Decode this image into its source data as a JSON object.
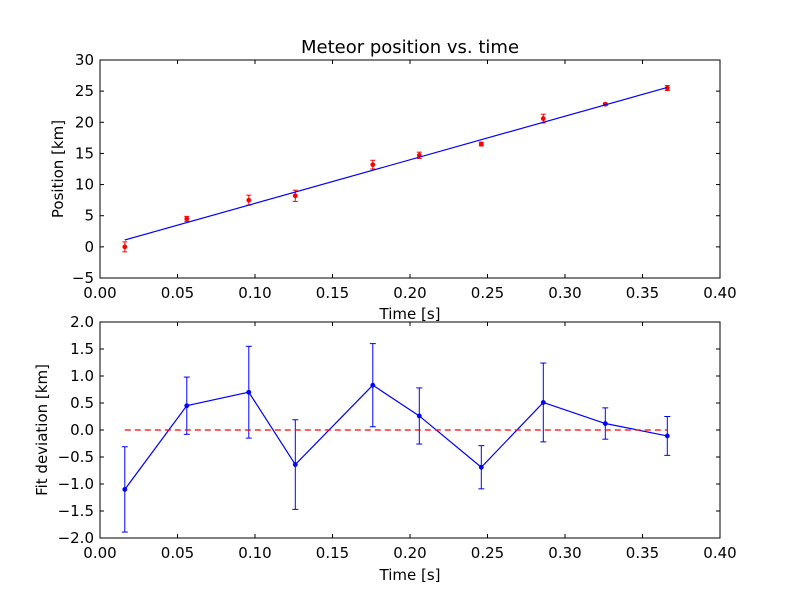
{
  "chart_data": [
    {
      "type": "scatter",
      "title": "Meteor position vs. time",
      "xlabel": "Time [s]",
      "ylabel": "Position [km]",
      "xlim": [
        0.0,
        0.4
      ],
      "ylim": [
        -5,
        30
      ],
      "x_ticks": [
        "0.00",
        "0.05",
        "0.10",
        "0.15",
        "0.20",
        "0.25",
        "0.30",
        "0.35",
        "0.40"
      ],
      "y_ticks": [
        "−5",
        "0",
        "5",
        "10",
        "15",
        "20",
        "25",
        "30"
      ],
      "grid": false,
      "series": [
        {
          "kind": "errorbar-points",
          "color": "#ff0000",
          "x": [
            0.016,
            0.056,
            0.096,
            0.126,
            0.176,
            0.206,
            0.246,
            0.286,
            0.326,
            0.366
          ],
          "y": [
            0.0,
            4.5,
            7.5,
            8.2,
            13.2,
            14.7,
            16.5,
            20.6,
            22.9,
            25.5
          ],
          "yerr": [
            0.8,
            0.4,
            0.8,
            0.9,
            0.7,
            0.5,
            0.3,
            0.7,
            0.2,
            0.4
          ]
        },
        {
          "kind": "fit-line",
          "color": "#0000ff",
          "x": [
            0.016,
            0.366
          ],
          "y": [
            1.1,
            25.6
          ]
        }
      ]
    },
    {
      "type": "line",
      "title": "",
      "xlabel": "Time [s]",
      "ylabel": "Fit deviation [km]",
      "xlim": [
        0.0,
        0.4
      ],
      "ylim": [
        -2.0,
        2.0
      ],
      "x_ticks": [
        "0.00",
        "0.05",
        "0.10",
        "0.15",
        "0.20",
        "0.25",
        "0.30",
        "0.35",
        "0.40"
      ],
      "y_ticks": [
        "−2.0",
        "−1.5",
        "−1.0",
        "−0.5",
        "0.0",
        "0.5",
        "1.0",
        "1.5",
        "2.0"
      ],
      "grid": false,
      "series": [
        {
          "kind": "errorbar-line",
          "color": "#0000ff",
          "x": [
            0.016,
            0.056,
            0.096,
            0.126,
            0.176,
            0.206,
            0.246,
            0.286,
            0.326,
            0.366
          ],
          "y": [
            -1.1,
            0.45,
            0.7,
            -0.64,
            0.83,
            0.26,
            -0.69,
            0.51,
            0.12,
            -0.11
          ],
          "yerr": [
            0.79,
            0.53,
            0.85,
            0.83,
            0.77,
            0.52,
            0.4,
            0.73,
            0.29,
            0.36
          ]
        },
        {
          "kind": "reference-line",
          "color": "#ff0000",
          "style": "dashed",
          "x": [
            0.016,
            0.366
          ],
          "y": [
            0.0,
            0.0
          ]
        }
      ]
    }
  ]
}
